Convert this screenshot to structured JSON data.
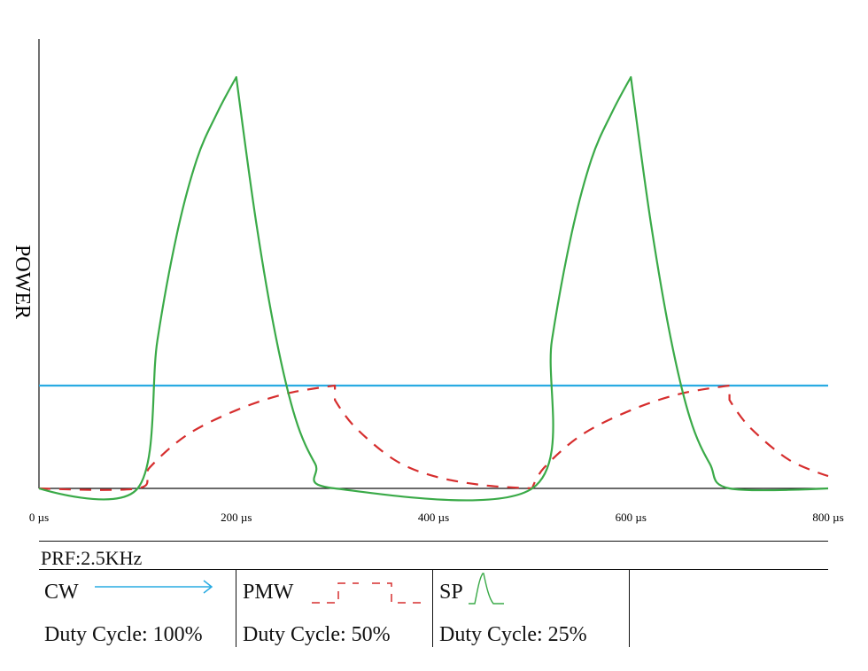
{
  "chart_data": {
    "type": "line",
    "ylabel": "POWER",
    "xlabel": "",
    "x_unit": "µs",
    "xlim": [
      0,
      800
    ],
    "x_ticks": [
      0,
      200,
      400,
      600,
      800
    ],
    "x_tick_labels": [
      "0 µs",
      "200 µs",
      "400 µs",
      "600 µs",
      "800 µs"
    ],
    "ylim": [
      0,
      1
    ],
    "grid": false,
    "series": [
      {
        "name": "CW",
        "style": "solid",
        "color": "#29abe2",
        "x": [
          0,
          800
        ],
        "y": [
          0.25,
          0.25
        ]
      },
      {
        "name": "PMW",
        "style": "dashed",
        "color": "#d62e2e",
        "x": [
          0,
          100,
          112,
          150,
          200,
          250,
          300,
          300,
          320,
          360,
          400,
          450,
          500,
          500,
          512,
          550,
          600,
          650,
          700,
          700,
          720,
          760,
          800
        ],
        "y": [
          0,
          0,
          0.05,
          0.13,
          0.19,
          0.23,
          0.25,
          0.215,
          0.15,
          0.07,
          0.03,
          0.008,
          0,
          0,
          0.05,
          0.13,
          0.19,
          0.23,
          0.25,
          0.215,
          0.15,
          0.07,
          0.03
        ]
      },
      {
        "name": "SP",
        "style": "solid",
        "color": "#3aaa48",
        "x": [
          0,
          100,
          120,
          140,
          160,
          180,
          200,
          200,
          220,
          240,
          260,
          280,
          300,
          500,
          520,
          540,
          560,
          580,
          600,
          600,
          620,
          640,
          660,
          680,
          700,
          800
        ],
        "y": [
          0,
          0,
          0.36,
          0.62,
          0.8,
          0.91,
          1.0,
          1.0,
          0.65,
          0.37,
          0.17,
          0.06,
          0,
          0,
          0.36,
          0.62,
          0.8,
          0.91,
          1.0,
          1.0,
          0.65,
          0.37,
          0.17,
          0.06,
          0,
          0
        ]
      }
    ]
  },
  "legend": {
    "prf": "PRF:2.5KHz",
    "cw": {
      "label": "CW",
      "duty": "Duty Cycle: 100%",
      "color": "#29abe2"
    },
    "pmw": {
      "label": "PMW",
      "duty": "Duty Cycle: 50%",
      "color": "#d62e2e"
    },
    "sp": {
      "label": "SP",
      "duty": "Duty Cycle: 25%",
      "color": "#3aaa48"
    }
  }
}
